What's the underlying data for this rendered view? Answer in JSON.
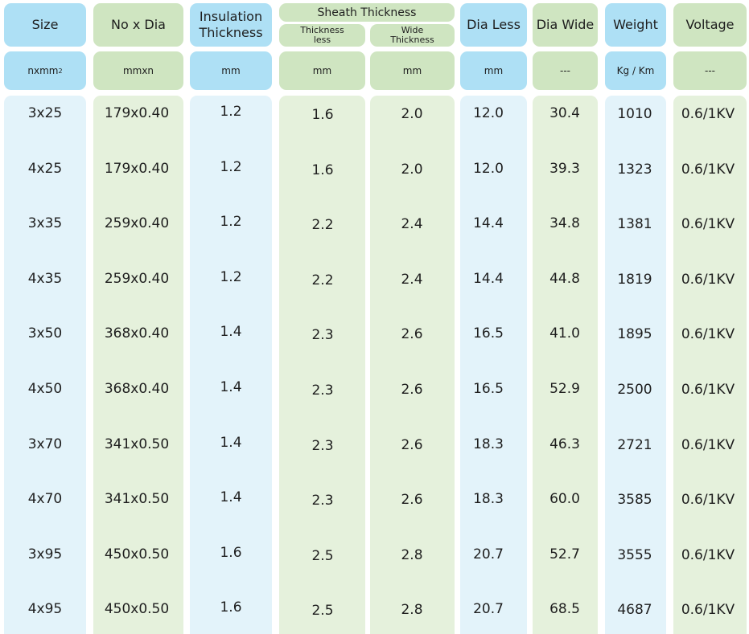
{
  "headers": {
    "size": "Size",
    "no_x_dia": "No x Dia",
    "insulation": "Insulation Thickness",
    "sheath": "Sheath Thickness",
    "sheath_less": "Thickness less",
    "sheath_wide": "Wide Thickness",
    "dia_less": "Dia Less",
    "dia_wide": "Dia Wide",
    "weight": "Weight",
    "voltage": "Voltage"
  },
  "units": {
    "size": "nxmm",
    "size_sup": "2",
    "no_x_dia": "mmxn",
    "insulation": "mm",
    "sheath_less": "mm",
    "sheath_wide": "mm",
    "dia_less": "mm",
    "dia_wide": "---",
    "weight": "Kg / Km",
    "voltage": "---"
  },
  "rows": [
    [
      "3x25",
      "179x0.40",
      "1.2",
      "1.6",
      "2.0",
      "12.0",
      "30.4",
      "1010",
      "0.6/1KV"
    ],
    [
      "4x25",
      "179x0.40",
      "1.2",
      "1.6",
      "2.0",
      "12.0",
      "39.3",
      "1323",
      "0.6/1KV"
    ],
    [
      "3x35",
      "259x0.40",
      "1.2",
      "2.2",
      "2.4",
      "14.4",
      "34.8",
      "1381",
      "0.6/1KV"
    ],
    [
      "4x35",
      "259x0.40",
      "1.2",
      "2.2",
      "2.4",
      "14.4",
      "44.8",
      "1819",
      "0.6/1KV"
    ],
    [
      "3x50",
      "368x0.40",
      "1.4",
      "2.3",
      "2.6",
      "16.5",
      "41.0",
      "1895",
      "0.6/1KV"
    ],
    [
      "4x50",
      "368x0.40",
      "1.4",
      "2.3",
      "2.6",
      "16.5",
      "52.9",
      "2500",
      "0.6/1KV"
    ],
    [
      "3x70",
      "341x0.50",
      "1.4",
      "2.3",
      "2.6",
      "18.3",
      "46.3",
      "2721",
      "0.6/1KV"
    ],
    [
      "4x70",
      "341x0.50",
      "1.4",
      "2.3",
      "2.6",
      "18.3",
      "60.0",
      "3585",
      "0.6/1KV"
    ],
    [
      "3x95",
      "450x0.50",
      "1.6",
      "2.5",
      "2.8",
      "20.7",
      "52.7",
      "3555",
      "0.6/1KV"
    ],
    [
      "4x95",
      "450x0.50",
      "1.6",
      "2.5",
      "2.8",
      "20.7",
      "68.5",
      "4687",
      "0.6/1KV"
    ]
  ],
  "colors": {
    "header_blue": "#aee0f5",
    "header_green": "#cfe5c1",
    "column_blue": "#e3f3fa",
    "column_green": "#e5f1dc"
  }
}
